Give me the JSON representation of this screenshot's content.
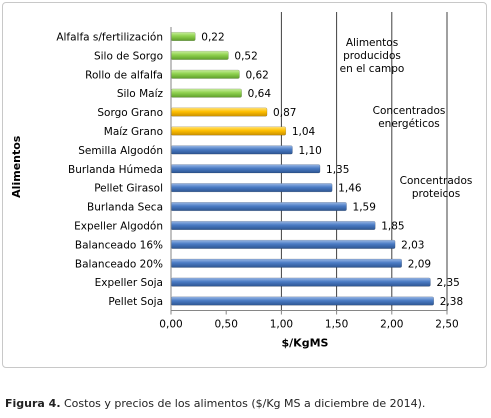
{
  "caption": {
    "label": "Figura 4.",
    "text": "Costos y precios de los alimentos ($/Kg MS a diciembre de 2014)."
  },
  "colors": {
    "green": "#8fd14f",
    "yellow": "#ffc000",
    "blue": "#4a7bc4",
    "gridline": "#404040"
  },
  "chart_data": {
    "type": "bar",
    "orientation": "horizontal",
    "xlabel": "$/KgMS",
    "ylabel": "Alimentos",
    "xlim": [
      0,
      2.5
    ],
    "x_ticks": [
      "0,00",
      "0,50",
      "1,00",
      "1,50",
      "2,00",
      "2,50"
    ],
    "grid": false,
    "categories": [
      "Alfalfa s/fertilización",
      "Silo de Sorgo",
      "Rollo de alfalfa",
      "Silo Maíz",
      "Sorgo Grano",
      "Maíz Grano",
      "Semilla Algodón",
      "Burlanda Húmeda",
      "Pellet Girasol",
      "Burlanda Seca",
      "Expeller Algodón",
      "Balanceado 16%",
      "Balanceado 20%",
      "Expeller Soja",
      "Pellet Soja"
    ],
    "values": [
      0.22,
      0.52,
      0.62,
      0.64,
      0.87,
      1.04,
      1.1,
      1.35,
      1.46,
      1.59,
      1.85,
      2.03,
      2.09,
      2.35,
      2.38
    ],
    "value_labels": [
      "0,22",
      "0,52",
      "0,62",
      "0,64",
      "0,87",
      "1,04",
      "1,10",
      "1,35",
      "1,46",
      "1,59",
      "1,85",
      "2,03",
      "2,09",
      "2,35",
      "2,38"
    ],
    "bar_groups": [
      "green",
      "green",
      "green",
      "green",
      "yellow",
      "yellow",
      "blue",
      "blue",
      "blue",
      "blue",
      "blue",
      "blue",
      "blue",
      "blue",
      "blue"
    ],
    "reference_lines_x": [
      1.0,
      1.5,
      2.0,
      2.5
    ],
    "annotations": [
      {
        "text": "Alimentos producidos en el campo",
        "lines": [
          "Alimentos",
          "producidos",
          "en el campo"
        ]
      },
      {
        "text": "Concentrados energéticos",
        "lines": [
          "Concentrados",
          "energéticos"
        ]
      },
      {
        "text": "Concentrados proteicos",
        "lines": [
          "Concentrados",
          "proteicos"
        ]
      }
    ]
  }
}
